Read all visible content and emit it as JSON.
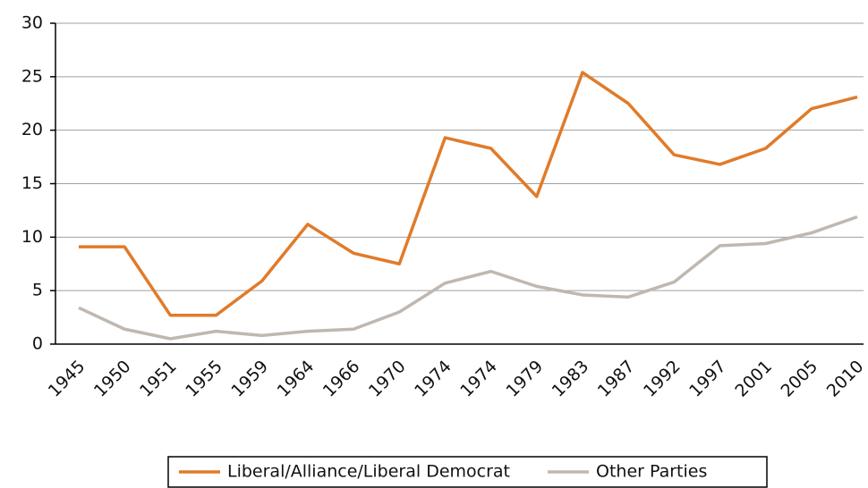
{
  "chart_data": {
    "type": "line",
    "categories": [
      "1945",
      "1950",
      "1951",
      "1955",
      "1959",
      "1964",
      "1966",
      "1970",
      "1974",
      "1974",
      "1979",
      "1983",
      "1987",
      "1992",
      "1997",
      "2001",
      "2005",
      "2010"
    ],
    "series": [
      {
        "name": "Liberal/Alliance/Liberal Democrat",
        "color": "#e07b2a",
        "values": [
          9.1,
          9.1,
          2.7,
          2.7,
          5.9,
          11.2,
          8.5,
          7.5,
          19.3,
          18.3,
          13.8,
          25.4,
          22.5,
          17.7,
          16.8,
          18.3,
          22.0,
          23.1
        ]
      },
      {
        "name": "Other Parties",
        "color": "#bfb8b0",
        "values": [
          3.4,
          1.4,
          0.5,
          1.2,
          0.8,
          1.2,
          1.4,
          3.0,
          5.7,
          6.8,
          5.4,
          4.6,
          4.4,
          5.8,
          9.2,
          9.4,
          10.4,
          11.9
        ]
      }
    ],
    "ylim": [
      0,
      30
    ],
    "yticks": [
      0,
      5,
      10,
      15,
      20,
      25,
      30
    ],
    "grid": true,
    "legend": "bottom"
  }
}
